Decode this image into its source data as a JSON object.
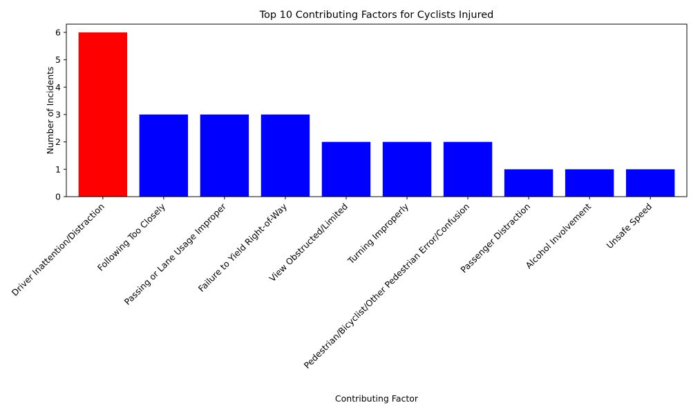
{
  "chart_data": {
    "type": "bar",
    "title": "Top 10 Contributing Factors for Cyclists Injured",
    "xlabel": "Contributing Factor",
    "ylabel": "Number of Incidents",
    "categories": [
      "Driver Inattention/Distraction",
      "Following Too Closely",
      "Passing or Lane Usage Improper",
      "Failure to Yield Right-of-Way",
      "View Obstructed/Limited",
      "Turning Improperly",
      "Pedestrian/Bicyclist/Other Pedestrian Error/Confusion",
      "Passenger Distraction",
      "Alcohol Involvement",
      "Unsafe Speed"
    ],
    "values": [
      6,
      3,
      3,
      3,
      2,
      2,
      2,
      1,
      1,
      1
    ],
    "colors": [
      "#ff0000",
      "#0000ff",
      "#0000ff",
      "#0000ff",
      "#0000ff",
      "#0000ff",
      "#0000ff",
      "#0000ff",
      "#0000ff",
      "#0000ff"
    ],
    "ylim": [
      0,
      6.3
    ],
    "yticks": [
      "0",
      "1",
      "2",
      "3",
      "4",
      "5",
      "6"
    ],
    "grid": false,
    "legend": "none"
  }
}
